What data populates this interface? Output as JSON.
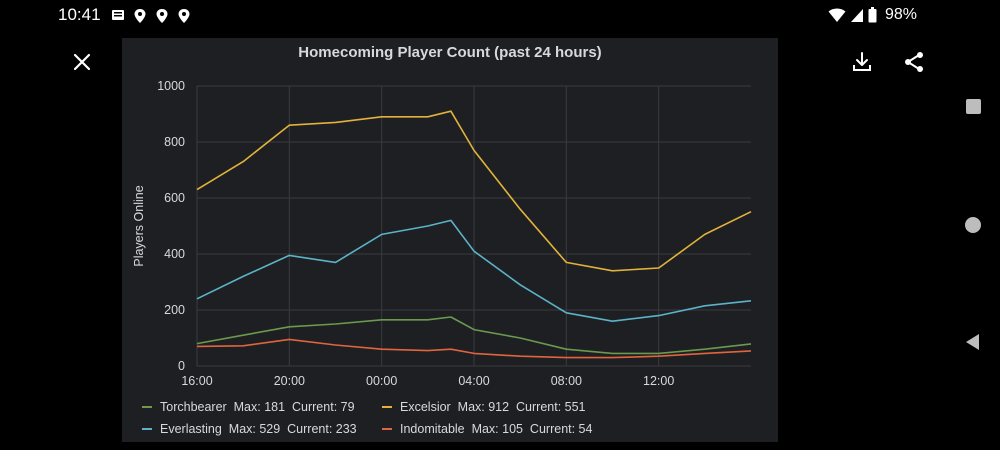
{
  "status_bar": {
    "time": "10:41",
    "battery": "98%",
    "icons": [
      "news-icon",
      "location-pin-icon",
      "location-pin-icon",
      "location-pin-icon",
      "wifi-icon",
      "signal-icon",
      "battery-icon"
    ]
  },
  "toolbar": {
    "close_icon": "close-icon",
    "download_icon": "download-icon",
    "share_icon": "share-icon"
  },
  "colors": {
    "background": "#000000",
    "panel": "#1e1f22",
    "grid": "#3a3b3f",
    "text": "#d8d9da",
    "torchbearer": "#6b9a4e",
    "excelsior": "#e2b33b",
    "everlasting": "#5bb3c8",
    "indomitable": "#e0653e"
  },
  "chart_data": {
    "type": "line",
    "title": "Homecoming Player Count (past 24 hours)",
    "ylabel": "Players Online",
    "xlabel": "",
    "ylim": [
      0,
      1000
    ],
    "yticks": [
      "0",
      "200",
      "400",
      "600",
      "800",
      "1000"
    ],
    "xticks": [
      "16:00",
      "20:00",
      "00:00",
      "04:00",
      "08:00",
      "12:00"
    ],
    "x_hours": [
      16,
      18,
      20,
      22,
      24,
      26,
      27,
      28,
      30,
      32,
      34,
      36,
      38,
      40
    ],
    "grid": true,
    "legend_position": "bottom",
    "series": [
      {
        "name": "Torchbearer",
        "color": "#6b9a4e",
        "max": "Max: 181",
        "current": "Current: 79",
        "values": [
          80,
          110,
          140,
          150,
          165,
          165,
          175,
          130,
          100,
          60,
          45,
          45,
          60,
          79
        ]
      },
      {
        "name": "Excelsior",
        "color": "#e2b33b",
        "max": "Max: 912",
        "current": "Current: 551",
        "values": [
          630,
          730,
          860,
          870,
          890,
          890,
          910,
          770,
          560,
          370,
          340,
          350,
          470,
          551
        ]
      },
      {
        "name": "Everlasting",
        "color": "#5bb3c8",
        "max": "Max: 529",
        "current": "Current: 233",
        "values": [
          240,
          320,
          395,
          370,
          470,
          500,
          520,
          410,
          290,
          190,
          160,
          180,
          215,
          233
        ]
      },
      {
        "name": "Indomitable",
        "color": "#e0653e",
        "max": "Max: 105",
        "current": "Current: 54",
        "values": [
          70,
          72,
          95,
          75,
          60,
          55,
          60,
          45,
          35,
          30,
          30,
          35,
          45,
          54
        ]
      }
    ]
  }
}
